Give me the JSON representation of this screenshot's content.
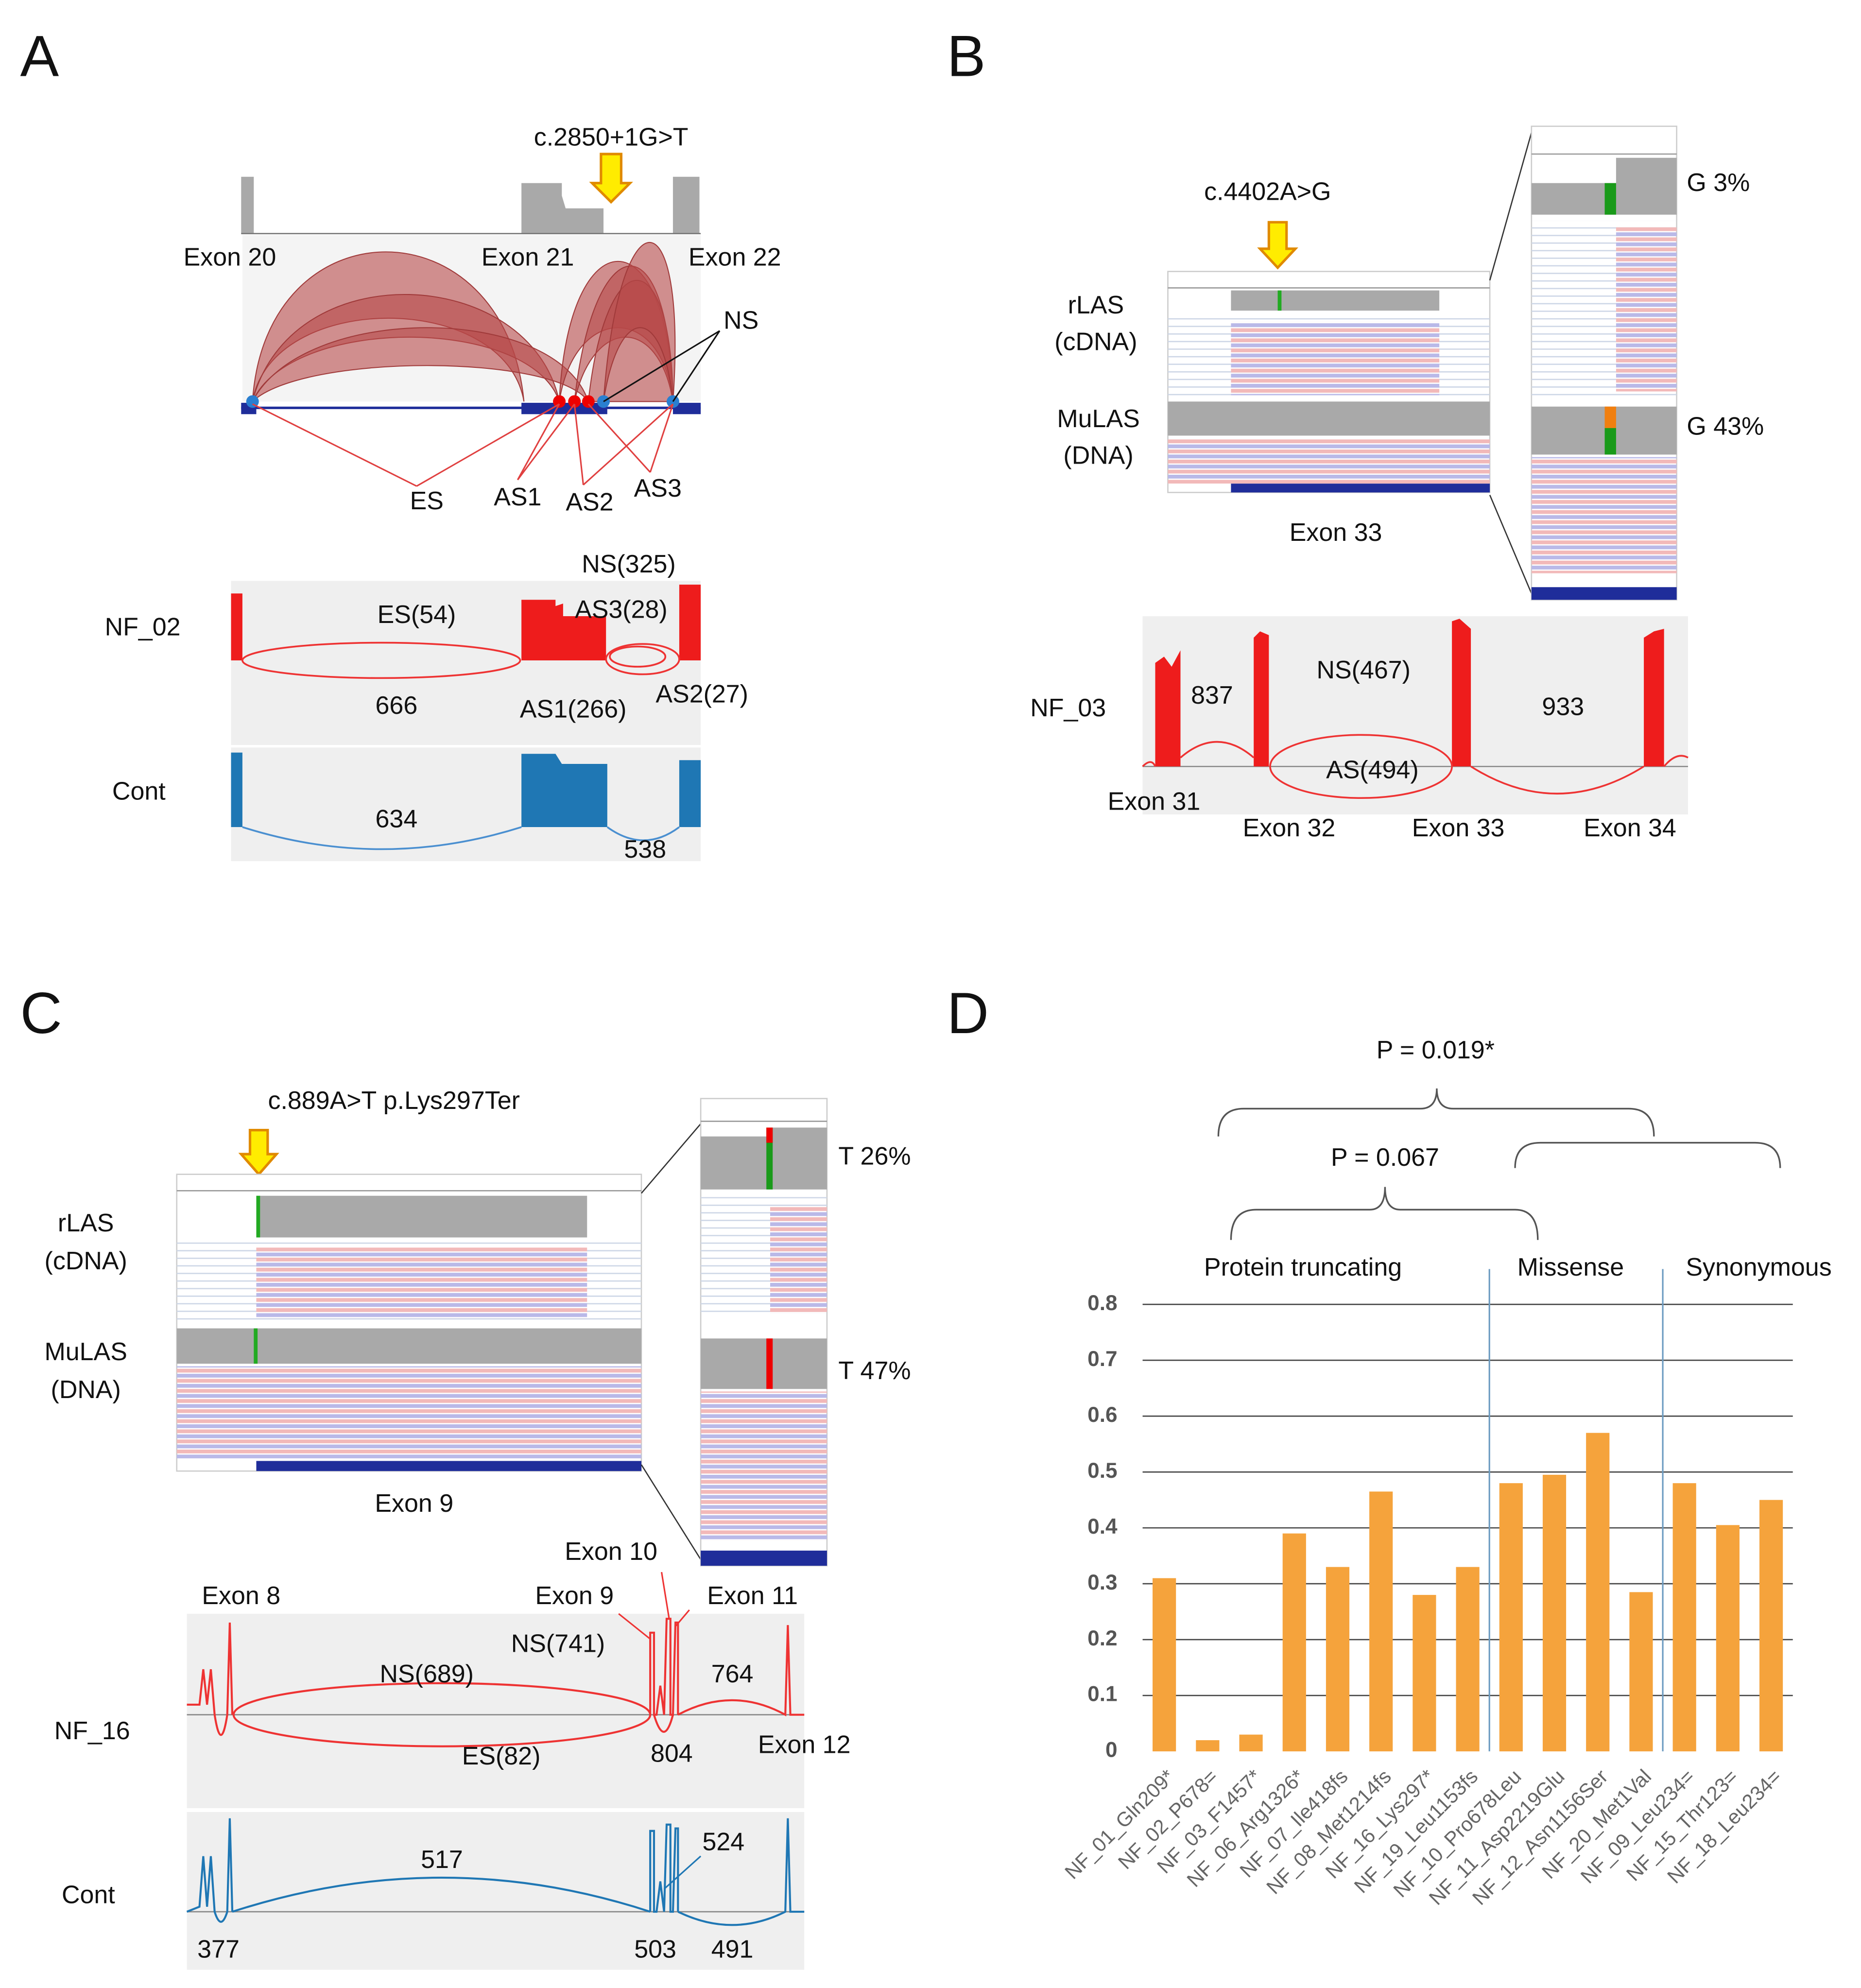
{
  "panel_a": {
    "label": "A",
    "mutation": "c.2850+1G>T",
    "exons": [
      "Exon 20",
      "Exon 21",
      "Exon 22"
    ],
    "junction_labels": [
      "NS",
      "ES",
      "AS1",
      "AS2",
      "AS3"
    ],
    "samples": [
      {
        "name": "NF_02",
        "junctions": [
          "NS(325)",
          "ES(54)",
          "AS3(28)",
          "666",
          "AS1(266)",
          "AS2(27)"
        ]
      },
      {
        "name": "Cont",
        "junctions": [
          "634",
          "538"
        ]
      }
    ]
  },
  "panel_b": {
    "label": "B",
    "mutation": "c.4402A>G",
    "tracks": [
      [
        "rLAS",
        "(cDNA)"
      ],
      [
        "MuLAS",
        "(DNA)"
      ]
    ],
    "exon": "Exon 33",
    "allele_freqs": [
      "G 3%",
      "G 43%"
    ],
    "sample": "NF_03",
    "junctions": [
      "837",
      "NS(467)",
      "933",
      "AS(494)"
    ],
    "exons": [
      "Exon 31",
      "Exon 32",
      "Exon 33",
      "Exon 34"
    ]
  },
  "panel_c": {
    "label": "C",
    "mutation": "c.889A>T p.Lys297Ter",
    "tracks": [
      [
        "rLAS",
        "(cDNA)"
      ],
      [
        "MuLAS",
        "(DNA)"
      ]
    ],
    "exon": "Exon 9",
    "allele_freqs": [
      "T 26%",
      "T 47%"
    ],
    "exons": [
      "Exon 8",
      "Exon 9",
      "Exon 10",
      "Exon 11",
      "Exon 12"
    ],
    "samples": [
      {
        "name": "NF_16",
        "junctions": [
          "NS(741)",
          "NS(689)",
          "764",
          "ES(82)",
          "804"
        ]
      },
      {
        "name": "Cont",
        "junctions": [
          "517",
          "524",
          "377",
          "503",
          "491"
        ]
      }
    ]
  },
  "chart_data": {
    "type": "bar",
    "panel": "D",
    "annotations": [
      "P = 0.019*",
      "P = 0.067"
    ],
    "groups": [
      "Protein truncating",
      "Missense",
      "Synonymous"
    ],
    "categories": [
      "NF_01_Gln209*",
      "NF_02_P678=",
      "NF_03_F1457*",
      "NF_06_Arg1326*",
      "NF_07_Ile418fs",
      "NF_08_Met1214fs",
      "NF_16_Lys297*",
      "NF_19_Leu1153fs",
      "NF_10_Pro678Leu",
      "NF_11_Asp2219Glu",
      "NF_12_Asn1156Ser",
      "NF_20_Met1Val",
      "NF_09_Leu234=",
      "NF_15_Thr123=",
      "NF_18_Leu234="
    ],
    "values": [
      0.31,
      0.02,
      0.03,
      0.39,
      0.33,
      0.465,
      0.28,
      0.33,
      0.48,
      0.495,
      0.57,
      0.285,
      0.48,
      0.405,
      0.45
    ],
    "color": "#f5a33c",
    "ylim": [
      0,
      0.8
    ],
    "yticks": [
      0,
      0.1,
      0.2,
      0.3,
      0.4,
      0.5,
      0.6,
      0.7,
      0.8
    ],
    "grid": true
  }
}
